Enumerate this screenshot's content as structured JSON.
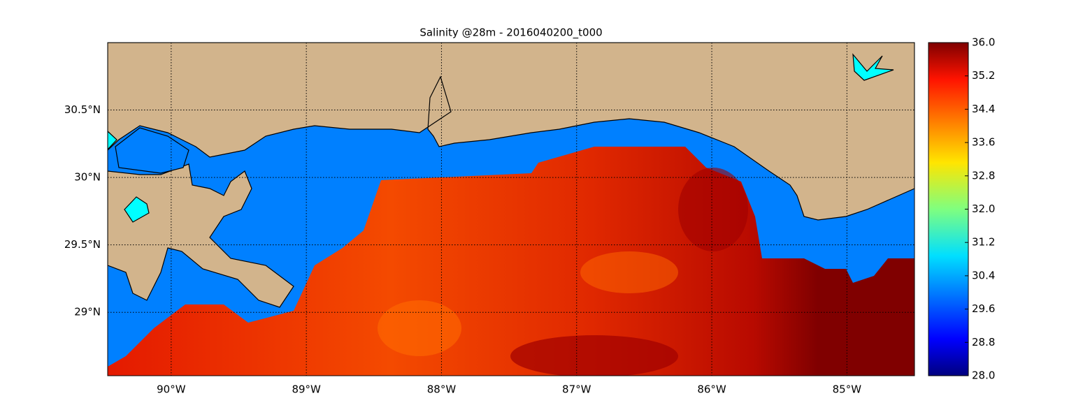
{
  "chart_data": {
    "type": "map",
    "title": "Salinity @28m - 2016040200_t000",
    "xlim": [
      -90.47,
      -84.5
    ],
    "ylim": [
      28.53,
      31.0
    ],
    "xticks": [
      {
        "value": -90,
        "label": "90°W"
      },
      {
        "value": -89,
        "label": "89°W"
      },
      {
        "value": -88,
        "label": "88°W"
      },
      {
        "value": -87,
        "label": "87°W"
      },
      {
        "value": -86,
        "label": "86°W"
      },
      {
        "value": -85,
        "label": "85°W"
      }
    ],
    "yticks": [
      {
        "value": 29,
        "label": "29°N"
      },
      {
        "value": 29.5,
        "label": "29.5°N"
      },
      {
        "value": 30,
        "label": "30°N"
      },
      {
        "value": 30.5,
        "label": "30.5°N"
      }
    ],
    "grid": true,
    "colorbar": {
      "lim": [
        28,
        36
      ],
      "ticks": [
        {
          "value": 28,
          "label": "28.0"
        },
        {
          "value": 28.8,
          "label": "28.8"
        },
        {
          "value": 29.6,
          "label": "29.6"
        },
        {
          "value": 30.4,
          "label": "30.4"
        },
        {
          "value": 31.2,
          "label": "31.2"
        },
        {
          "value": 32,
          "label": "32.0"
        },
        {
          "value": 32.8,
          "label": "32.8"
        },
        {
          "value": 33.6,
          "label": "33.6"
        },
        {
          "value": 34.4,
          "label": "34.4"
        },
        {
          "value": 35.2,
          "label": "35.2"
        },
        {
          "value": 36,
          "label": "36.0"
        }
      ]
    }
  }
}
